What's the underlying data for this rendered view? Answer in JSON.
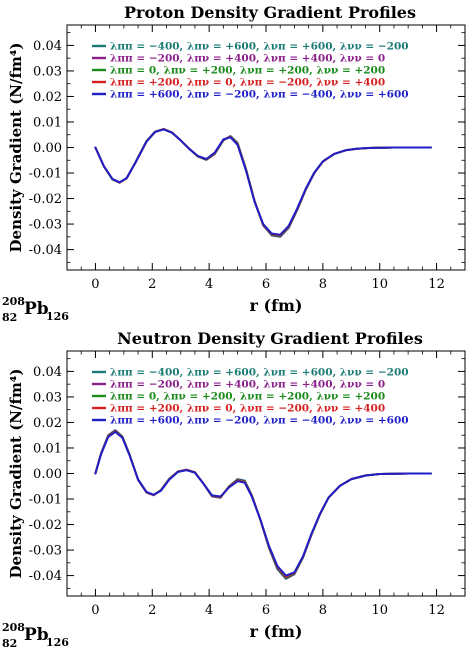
{
  "nucleus": {
    "mass": "208",
    "charge": "82",
    "symbol": "Pb",
    "neutrons": "126"
  },
  "legend_entries": [
    {
      "label": "λππ = −400, λπν = +600, λνπ = +600, λνν = −200",
      "color": "#1a7a74"
    },
    {
      "label": "λππ = −200, λπν = +400, λνπ = +400, λνν = 0",
      "color": "#8b1f8b"
    },
    {
      "label": "λππ = 0, λπν = +200, λνπ = +200, λνν = +200",
      "color": "#1a8a1a"
    },
    {
      "label": "λππ = +200, λπν = 0, λνπ = −200, λνν = +400",
      "color": "#d62020"
    },
    {
      "label": "λππ = +600, λπν = −200, λνπ = −400, λνν = +600",
      "color": "#1f1fc8"
    }
  ],
  "chart_data": [
    {
      "type": "line",
      "title": "Proton Density Gradient Profiles",
      "xlabel": "r (fm)",
      "ylabel": "Density Gradient (N/fm⁴)",
      "xlim": [
        -1,
        13
      ],
      "ylim": [
        -0.048,
        0.048
      ],
      "xticks": [
        0,
        2,
        4,
        6,
        8,
        10,
        12
      ],
      "yticks": [
        -0.04,
        -0.03,
        -0.02,
        -0.01,
        0.0,
        0.01,
        0.02,
        0.03,
        0.04
      ],
      "legend_position": "top-left",
      "x": [
        0,
        0.3,
        0.6,
        0.85,
        1.1,
        1.4,
        1.8,
        2.1,
        2.4,
        2.7,
        3.0,
        3.3,
        3.6,
        3.9,
        4.2,
        4.5,
        4.75,
        5.0,
        5.3,
        5.6,
        5.9,
        6.2,
        6.5,
        6.8,
        7.1,
        7.4,
        7.7,
        8.0,
        8.4,
        8.8,
        9.2,
        9.6,
        10.0,
        10.5,
        11.0,
        11.5,
        11.8
      ],
      "series": [
        {
          "name": "λππ = −400, λπν = +600, λνπ = +600, λνν = −200",
          "values": [
            0.0,
            -0.0075,
            -0.0125,
            -0.0138,
            -0.012,
            -0.006,
            0.0025,
            0.0062,
            0.0072,
            0.0058,
            0.0028,
            -0.0005,
            -0.0035,
            -0.0048,
            -0.0025,
            0.0028,
            0.0045,
            0.0018,
            -0.0085,
            -0.021,
            -0.0305,
            -0.0345,
            -0.035,
            -0.0315,
            -0.0245,
            -0.0165,
            -0.01,
            -0.0055,
            -0.0025,
            -0.0011,
            -0.0005,
            -0.0002,
            -0.0001,
            0.0,
            0.0,
            0.0,
            0.0
          ]
        },
        {
          "name": "λππ = −200, λπν = +400, λνπ = +400, λνν = 0",
          "values": [
            0.0,
            -0.0075,
            -0.0125,
            -0.0138,
            -0.012,
            -0.006,
            0.0025,
            0.0062,
            0.0072,
            0.0058,
            0.0028,
            -0.0005,
            -0.0035,
            -0.0048,
            -0.0025,
            0.0029,
            0.0044,
            0.0016,
            -0.0087,
            -0.021,
            -0.0305,
            -0.0343,
            -0.0348,
            -0.0313,
            -0.0243,
            -0.0164,
            -0.01,
            -0.0055,
            -0.0025,
            -0.0011,
            -0.0005,
            -0.0002,
            -0.0001,
            0.0,
            0.0,
            0.0,
            0.0
          ]
        },
        {
          "name": "λππ = 0, λπν = +200, λνπ = +200, λνν = +200",
          "values": [
            0.0,
            -0.0075,
            -0.0125,
            -0.0137,
            -0.012,
            -0.006,
            0.0025,
            0.0062,
            0.0072,
            0.0058,
            0.0028,
            -0.0005,
            -0.0035,
            -0.0047,
            -0.0024,
            0.003,
            0.0043,
            0.0014,
            -0.0088,
            -0.0211,
            -0.0303,
            -0.0341,
            -0.0346,
            -0.0311,
            -0.0241,
            -0.0163,
            -0.0099,
            -0.0055,
            -0.0025,
            -0.0011,
            -0.0005,
            -0.0002,
            -0.0001,
            0.0,
            0.0,
            0.0,
            0.0
          ]
        },
        {
          "name": "λππ = +200, λπν = 0, λνπ = −200, λνν = +400",
          "values": [
            0.0,
            -0.0074,
            -0.0124,
            -0.0137,
            -0.012,
            -0.0061,
            0.0024,
            0.0061,
            0.0072,
            0.0058,
            0.0028,
            -0.0005,
            -0.0034,
            -0.0046,
            -0.0022,
            0.0031,
            0.0042,
            0.0012,
            -0.009,
            -0.0212,
            -0.0302,
            -0.0339,
            -0.0344,
            -0.0309,
            -0.024,
            -0.0162,
            -0.0099,
            -0.0055,
            -0.0025,
            -0.0011,
            -0.0005,
            -0.0002,
            -0.0001,
            0.0,
            0.0,
            0.0,
            0.0
          ]
        },
        {
          "name": "λππ = +600, λπν = −200, λνπ = −400, λνν = +600",
          "values": [
            0.0,
            -0.0074,
            -0.0124,
            -0.0136,
            -0.012,
            -0.0061,
            0.0024,
            0.0061,
            0.0071,
            0.0058,
            0.0028,
            -0.0005,
            -0.0033,
            -0.0045,
            -0.002,
            0.0032,
            0.004,
            0.001,
            -0.0092,
            -0.0213,
            -0.03,
            -0.0337,
            -0.0342,
            -0.0307,
            -0.0238,
            -0.0161,
            -0.0098,
            -0.0054,
            -0.0025,
            -0.0011,
            -0.0005,
            -0.0002,
            -0.0001,
            0.0,
            0.0,
            0.0,
            0.0
          ]
        }
      ]
    },
    {
      "type": "line",
      "title": "Neutron Density Gradient Profiles",
      "xlabel": "r (fm)",
      "ylabel": "Density Gradient (N/fm⁴)",
      "xlim": [
        -1,
        13
      ],
      "ylim": [
        -0.048,
        0.048
      ],
      "xticks": [
        0,
        2,
        4,
        6,
        8,
        10,
        12
      ],
      "yticks": [
        -0.04,
        -0.03,
        -0.02,
        -0.01,
        0.0,
        0.01,
        0.02,
        0.03,
        0.04
      ],
      "legend_position": "top-left",
      "x": [
        0,
        0.2,
        0.45,
        0.7,
        0.95,
        1.2,
        1.5,
        1.8,
        2.05,
        2.3,
        2.6,
        2.9,
        3.2,
        3.5,
        3.8,
        4.1,
        4.4,
        4.7,
        5.0,
        5.25,
        5.5,
        5.8,
        6.1,
        6.4,
        6.7,
        7.0,
        7.3,
        7.6,
        7.9,
        8.2,
        8.6,
        9.0,
        9.5,
        10.0,
        10.5,
        11.0,
        11.8
      ],
      "series": [
        {
          "name": "λππ = −400, λπν = +600, λνπ = +600, λνν = −200",
          "values": [
            0.0,
            0.008,
            0.015,
            0.017,
            0.0145,
            0.0075,
            -0.0025,
            -0.0075,
            -0.0085,
            -0.0065,
            -0.002,
            0.0008,
            0.0015,
            0.0005,
            -0.004,
            -0.009,
            -0.0095,
            -0.005,
            -0.0022,
            -0.0028,
            -0.0085,
            -0.018,
            -0.029,
            -0.0375,
            -0.0413,
            -0.0395,
            -0.033,
            -0.024,
            -0.016,
            -0.0095,
            -0.0048,
            -0.0022,
            -0.0008,
            -0.0002,
            -0.0001,
            0.0,
            0.0
          ]
        },
        {
          "name": "λππ = −200, λπν = +400, λνπ = +400, λνν = 0",
          "values": [
            0.0,
            0.0079,
            0.0148,
            0.0168,
            0.0143,
            0.0074,
            -0.0025,
            -0.0075,
            -0.0085,
            -0.0066,
            -0.0021,
            0.0008,
            0.0015,
            0.0005,
            -0.004,
            -0.0089,
            -0.0094,
            -0.0051,
            -0.0024,
            -0.003,
            -0.0086,
            -0.018,
            -0.0288,
            -0.0372,
            -0.041,
            -0.0393,
            -0.0328,
            -0.0239,
            -0.0159,
            -0.0095,
            -0.0048,
            -0.0022,
            -0.0008,
            -0.0002,
            -0.0001,
            0.0,
            0.0
          ]
        },
        {
          "name": "λππ = 0, λπν = +200, λνπ = +200, λνν = +200",
          "values": [
            0.0,
            0.0078,
            0.0146,
            0.0166,
            0.0142,
            0.0074,
            -0.0024,
            -0.0074,
            -0.0084,
            -0.0066,
            -0.0022,
            0.0007,
            0.0014,
            0.0004,
            -0.004,
            -0.0088,
            -0.0093,
            -0.0052,
            -0.0026,
            -0.0032,
            -0.0087,
            -0.018,
            -0.0286,
            -0.0369,
            -0.0407,
            -0.0391,
            -0.0327,
            -0.0238,
            -0.0159,
            -0.0095,
            -0.0048,
            -0.0022,
            -0.0008,
            -0.0002,
            -0.0001,
            0.0,
            0.0
          ]
        },
        {
          "name": "λππ = +200, λπν = 0, λνπ = −200, λνν = +400",
          "values": [
            0.0,
            0.0077,
            0.0145,
            0.0165,
            0.0141,
            0.0073,
            -0.0024,
            -0.0074,
            -0.0084,
            -0.0067,
            -0.0023,
            0.0007,
            0.0014,
            0.0004,
            -0.004,
            -0.0087,
            -0.0092,
            -0.0053,
            -0.0028,
            -0.0034,
            -0.0088,
            -0.018,
            -0.0284,
            -0.0366,
            -0.0404,
            -0.0389,
            -0.0326,
            -0.0237,
            -0.0158,
            -0.0095,
            -0.0048,
            -0.0022,
            -0.0008,
            -0.0002,
            -0.0001,
            0.0,
            0.0
          ]
        },
        {
          "name": "λππ = +600, λπν = −200, λνπ = −400, λνν = +600",
          "values": [
            0.0,
            0.0076,
            0.0143,
            0.0163,
            0.014,
            0.0072,
            -0.0023,
            -0.0073,
            -0.0083,
            -0.0068,
            -0.0024,
            0.0006,
            0.0013,
            0.0003,
            -0.004,
            -0.0086,
            -0.009,
            -0.0055,
            -0.003,
            -0.0036,
            -0.009,
            -0.018,
            -0.0282,
            -0.0363,
            -0.04,
            -0.0387,
            -0.0325,
            -0.0236,
            -0.0158,
            -0.0095,
            -0.0048,
            -0.0022,
            -0.0008,
            -0.0002,
            -0.0001,
            0.0,
            0.0
          ]
        }
      ]
    }
  ]
}
